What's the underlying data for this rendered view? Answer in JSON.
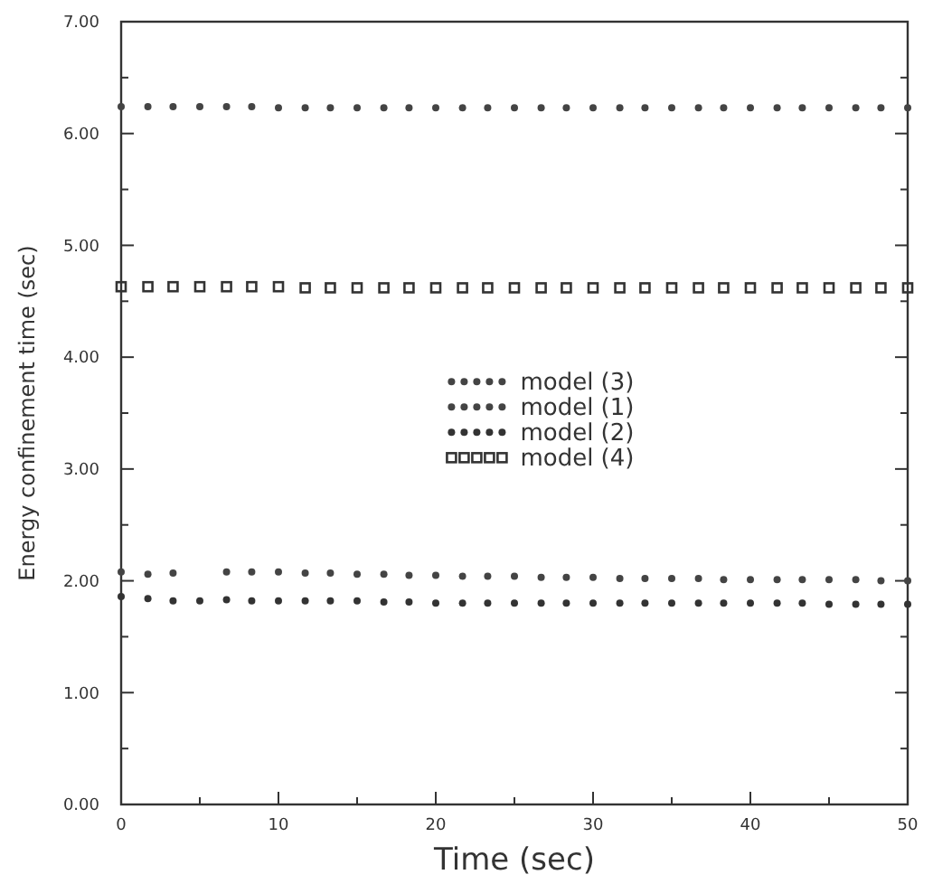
{
  "chart_data": {
    "type": "scatter",
    "xlabel": "Time (sec)",
    "ylabel": "Energy confinement time (sec)",
    "x": [
      0,
      1.7,
      3.3,
      5,
      6.7,
      8.3,
      10,
      11.7,
      13.3,
      15,
      16.7,
      18.3,
      20,
      21.7,
      23.3,
      25,
      26.7,
      28.3,
      30,
      31.7,
      33.3,
      35,
      36.7,
      38.3,
      40,
      41.7,
      43.3,
      45,
      46.7,
      48.3,
      50
    ],
    "xlim": [
      0,
      50
    ],
    "xticks": [
      0,
      {
        "value": 5,
        "label": null
      },
      10,
      {
        "value": 15,
        "label": null
      },
      20,
      {
        "value": 25,
        "label": null
      },
      30,
      {
        "value": 35,
        "label": null
      },
      40,
      {
        "value": 45,
        "label": null
      },
      50
    ],
    "ylim": [
      0,
      7
    ],
    "yticks": [
      {
        "value": 0,
        "label": "0.00"
      },
      {
        "value": 0.5,
        "label": null
      },
      {
        "value": 1,
        "label": "1.00"
      },
      {
        "value": 1.5,
        "label": null
      },
      {
        "value": 2,
        "label": "2.00"
      },
      {
        "value": 2.5,
        "label": null
      },
      {
        "value": 3,
        "label": "3.00"
      },
      {
        "value": 3.5,
        "label": null
      },
      {
        "value": 4,
        "label": "4.00"
      },
      {
        "value": 4.5,
        "label": null
      },
      {
        "value": 5,
        "label": "5.00"
      },
      {
        "value": 5.5,
        "label": null
      },
      {
        "value": 6,
        "label": "6.00"
      },
      {
        "value": 6.5,
        "label": null
      },
      {
        "value": 7,
        "label": "7.00"
      }
    ],
    "legend": "center",
    "marker": "circle",
    "grid": false,
    "series": [
      {
        "name": "model (3)",
        "color": "#444444",
        "values": [
          6.24,
          6.24,
          6.24,
          6.24,
          6.24,
          6.24,
          6.23,
          6.23,
          6.23,
          6.23,
          6.23,
          6.23,
          6.23,
          6.23,
          6.23,
          6.23,
          6.23,
          6.23,
          6.23,
          6.23,
          6.23,
          6.23,
          6.23,
          6.23,
          6.23,
          6.23,
          6.23,
          6.23,
          6.23,
          6.23,
          6.23
        ]
      },
      {
        "name": "model (1)",
        "color": "#444444",
        "values": [
          2.08,
          2.06,
          2.07,
          null,
          2.08,
          2.08,
          2.08,
          2.07,
          2.07,
          2.06,
          2.06,
          2.05,
          2.05,
          2.04,
          2.04,
          2.04,
          2.03,
          2.03,
          2.03,
          2.02,
          2.02,
          2.02,
          2.02,
          2.01,
          2.01,
          2.01,
          2.01,
          2.01,
          2.01,
          2.0,
          2.0
        ]
      },
      {
        "name": "model (2)",
        "color": "#333333",
        "values": [
          1.86,
          1.84,
          1.82,
          1.82,
          1.83,
          1.82,
          1.82,
          1.82,
          1.82,
          1.82,
          1.81,
          1.81,
          1.8,
          1.8,
          1.8,
          1.8,
          1.8,
          1.8,
          1.8,
          1.8,
          1.8,
          1.8,
          1.8,
          1.8,
          1.8,
          1.8,
          1.8,
          1.79,
          1.79,
          1.79,
          1.79
        ]
      },
      {
        "name": "model (4)",
        "color": "#333333",
        "marker": "square",
        "values": [
          4.63,
          4.63,
          4.63,
          4.63,
          4.63,
          4.63,
          4.63,
          4.62,
          4.62,
          4.62,
          4.62,
          4.62,
          4.62,
          4.62,
          4.62,
          4.62,
          4.62,
          4.62,
          4.62,
          4.62,
          4.62,
          4.62,
          4.62,
          4.62,
          4.62,
          4.62,
          4.62,
          4.62,
          4.62,
          4.62,
          4.62
        ]
      }
    ]
  }
}
